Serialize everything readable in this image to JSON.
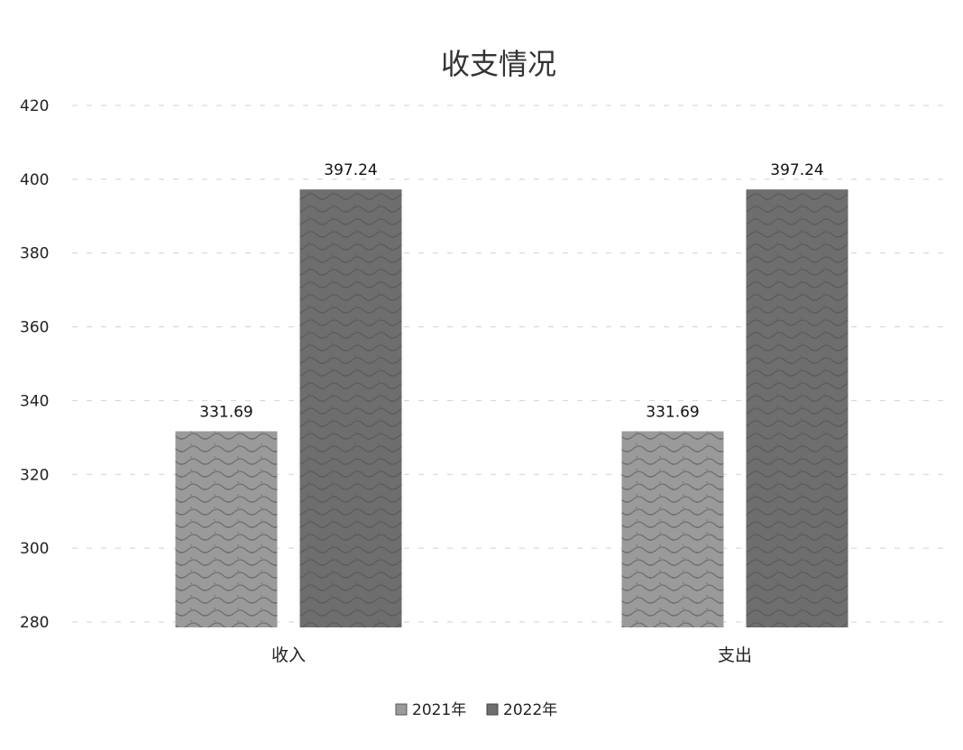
{
  "chart_data": {
    "type": "bar",
    "title": "收支情况",
    "categories": [
      "收入",
      "支出"
    ],
    "series": [
      {
        "name": "2021年",
        "values": [
          331.69,
          331.69
        ],
        "labels": [
          "331.69",
          "331.69"
        ],
        "color": "#9a9a9a"
      },
      {
        "name": "2022年",
        "values": [
          397.24,
          397.24
        ],
        "labels": [
          "397.24",
          "397.24"
        ],
        "color": "#6e6e6e"
      }
    ],
    "ylim": [
      280,
      420
    ],
    "yticks": [
      "280",
      "300",
      "320",
      "340",
      "360",
      "380",
      "400",
      "420"
    ],
    "grid": true,
    "legend_position": "bottom"
  }
}
